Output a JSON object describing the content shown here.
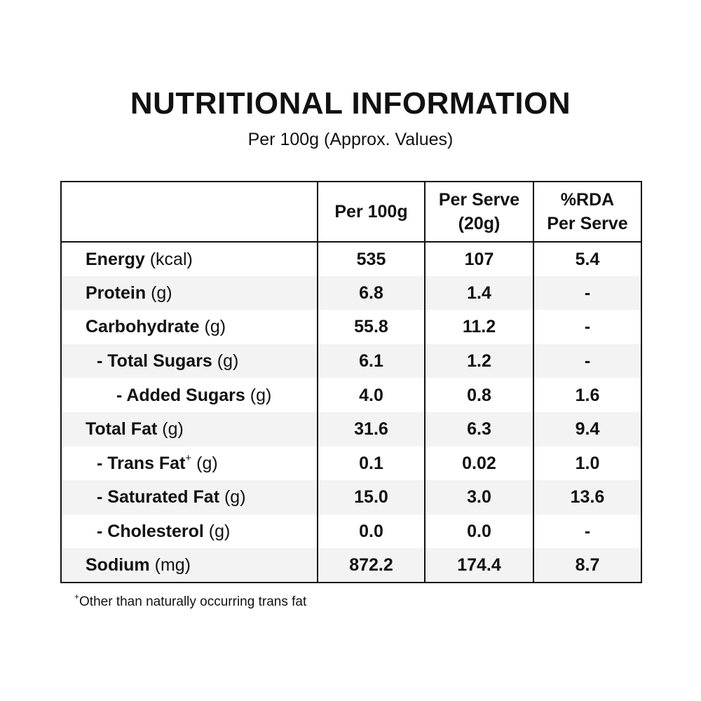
{
  "title": "NUTRITIONAL INFORMATION",
  "subtitle": "Per 100g (Approx. Values)",
  "table": {
    "headers": [
      "",
      "Per 100g",
      "Per Serve\n(20g)",
      "%RDA\nPer Serve"
    ],
    "rows": [
      {
        "name": "Energy",
        "unit": "(kcal)",
        "per100g": "535",
        "perServe": "107",
        "rda": "5.4"
      },
      {
        "name": "Protein",
        "unit": "(g)",
        "per100g": "6.8",
        "perServe": "1.4",
        "rda": "-"
      },
      {
        "name": "Carbohydrate",
        "unit": "(g)",
        "per100g": "55.8",
        "perServe": "11.2",
        "rda": "-"
      },
      {
        "name": "- Total Sugars",
        "unit": "(g)",
        "per100g": "6.1",
        "perServe": "1.2",
        "rda": "-"
      },
      {
        "name": "- Added Sugars",
        "unit": "(g)",
        "per100g": "4.0",
        "perServe": "0.8",
        "rda": "1.6"
      },
      {
        "name": "Total Fat",
        "unit": "(g)",
        "per100g": "31.6",
        "perServe": "6.3",
        "rda": "9.4"
      },
      {
        "name": "- Trans Fat",
        "sup": "+",
        "unit": "(g)",
        "per100g": "0.1",
        "perServe": "0.02",
        "rda": "1.0"
      },
      {
        "name": "- Saturated Fat",
        "unit": "(g)",
        "per100g": "15.0",
        "perServe": "3.0",
        "rda": "13.6"
      },
      {
        "name": "- Cholesterol",
        "unit": "(g)",
        "per100g": "0.0",
        "perServe": "0.0",
        "rda": "-"
      },
      {
        "name": "Sodium",
        "unit": "(mg)",
        "per100g": "872.2",
        "perServe": "174.4",
        "rda": "8.7"
      }
    ]
  },
  "footnote": {
    "marker": "+",
    "text": "Other than naturally occurring trans fat"
  },
  "colors": {
    "text": "#111111",
    "border": "#111111",
    "row_shade": "#f3f3f3",
    "background": "#ffffff"
  }
}
